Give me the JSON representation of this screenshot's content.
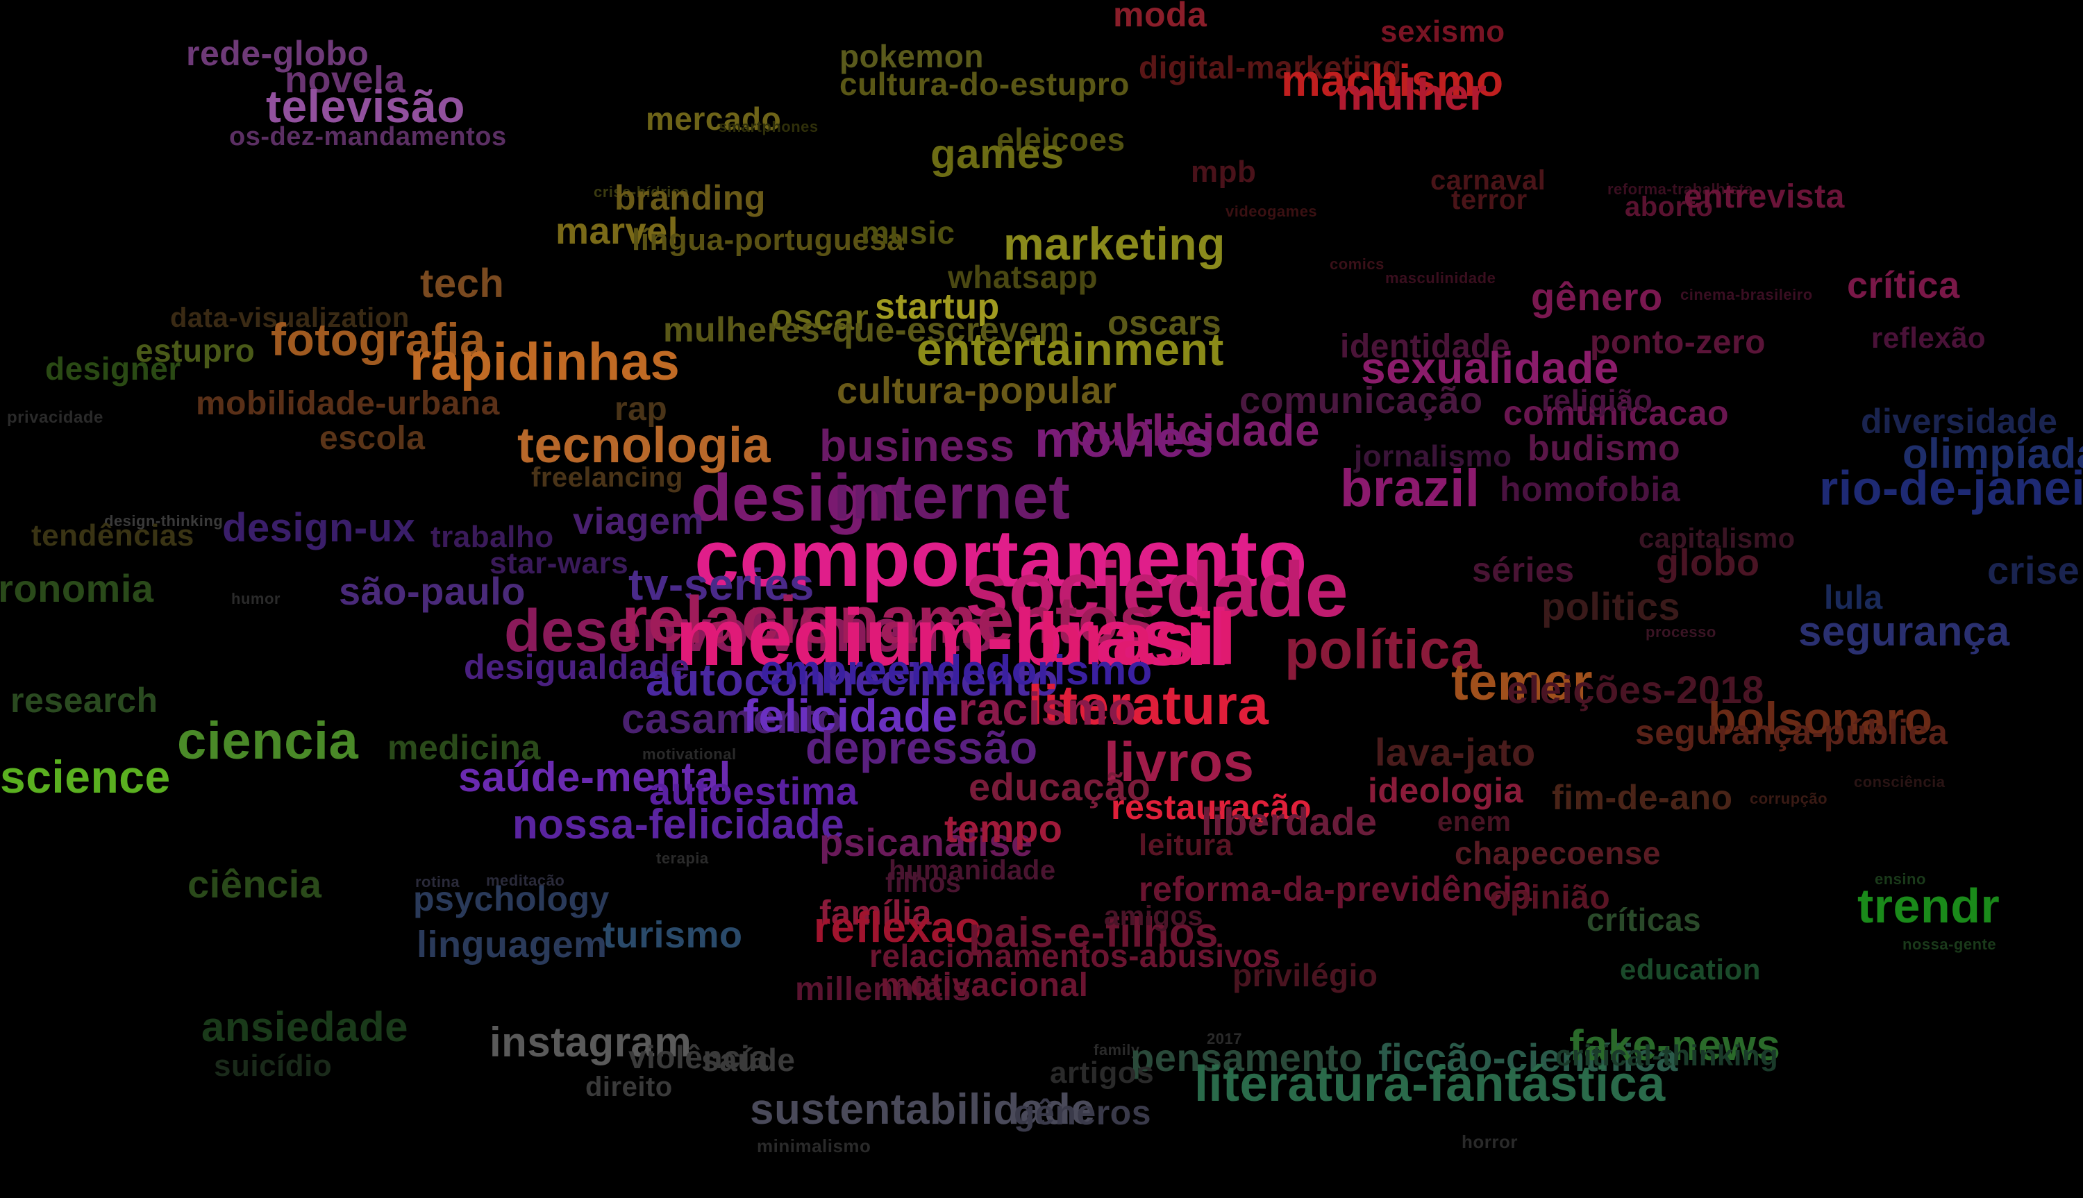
{
  "background_color": "#000000",
  "words": [
    {
      "text": "moda",
      "color": "#8a1e2a"
    },
    {
      "text": "sexismo",
      "color": "#7a1424"
    },
    {
      "text": "rede-globo",
      "color": "#6e3a78"
    },
    {
      "text": "novela",
      "color": "#6a3572"
    },
    {
      "text": "televisão",
      "color": "#92519e"
    },
    {
      "text": "os-dez-mandamentos",
      "color": "#5b2f63"
    },
    {
      "text": "pokemon",
      "color": "#5a5a1c"
    },
    {
      "text": "cultura-do-estupro",
      "color": "#5a5716"
    },
    {
      "text": "digital-marketing",
      "color": "#5a1616"
    },
    {
      "text": "machismo",
      "color": "#c01f1f"
    },
    {
      "text": "mulher",
      "color": "#b01a30"
    },
    {
      "text": "mercado",
      "color": "#6e6418"
    },
    {
      "text": "smartphones",
      "color": "#2f2f0a"
    },
    {
      "text": "eleicoes",
      "color": "#525212"
    },
    {
      "text": "games",
      "color": "#6c6c14"
    },
    {
      "text": "mpb",
      "color": "#4a121a"
    },
    {
      "text": "carnaval",
      "color": "#4a1418"
    },
    {
      "text": "terror",
      "color": "#4a1418"
    },
    {
      "text": "reforma-trabalhista",
      "color": "#3a0e20"
    },
    {
      "text": "aborto",
      "color": "#5a1230"
    },
    {
      "text": "entrevista",
      "color": "#6a1438"
    },
    {
      "text": "crise-hídrica",
      "color": "#3a3a10"
    },
    {
      "text": "branding",
      "color": "#6a5a18"
    },
    {
      "text": "marvel",
      "color": "#7a6a18"
    },
    {
      "text": "língua-portuguesa",
      "color": "#5a5214"
    },
    {
      "text": "music",
      "color": "#505010"
    },
    {
      "text": "videogames",
      "color": "#3a1012"
    },
    {
      "text": "marketing",
      "color": "#8a8a1c"
    },
    {
      "text": "tech",
      "color": "#7a4a20"
    },
    {
      "text": "whatsapp",
      "color": "#4a4812"
    },
    {
      "text": "comics",
      "color": "#3a1018"
    },
    {
      "text": "masculinidade",
      "color": "#3a0e1e"
    },
    {
      "text": "gênero",
      "color": "#7a1850"
    },
    {
      "text": "cinema-brasileiro",
      "color": "#3a0e22"
    },
    {
      "text": "crítica",
      "color": "#7a1848"
    },
    {
      "text": "data-visualization",
      "color": "#3a2a14"
    },
    {
      "text": "fotografia",
      "color": "#a05a20"
    },
    {
      "text": "estupro",
      "color": "#4a5a18"
    },
    {
      "text": "startup",
      "color": "#a09a20"
    },
    {
      "text": "oscar",
      "color": "#6a6a18"
    },
    {
      "text": "mulheres-que-escrevem",
      "color": "#5a5818"
    },
    {
      "text": "oscars",
      "color": "#5a5818"
    },
    {
      "text": "entertainment",
      "color": "#8a8a18"
    },
    {
      "text": "identidade",
      "color": "#4a1438"
    },
    {
      "text": "ponto-zero",
      "color": "#5a1438"
    },
    {
      "text": "reflexão",
      "color": "#4a1238"
    },
    {
      "text": "designer",
      "color": "#2a4a14"
    },
    {
      "text": "rapidinhas",
      "color": "#c06a24"
    },
    {
      "text": "sexualidade",
      "color": "#8a1c6a"
    },
    {
      "text": "privacidade",
      "color": "#2a2a2a"
    },
    {
      "text": "mobilidade-urbana",
      "color": "#5a3018"
    },
    {
      "text": "cultura-popular",
      "color": "#6a5a18"
    },
    {
      "text": "comunicação",
      "color": "#4a1840"
    },
    {
      "text": "comunicacao",
      "color": "#6a1650"
    },
    {
      "text": "religião",
      "color": "#4a1440"
    },
    {
      "text": "diversidade",
      "color": "#1a2450"
    },
    {
      "text": "olimpíadas",
      "color": "#1e2e6a"
    },
    {
      "text": "escola",
      "color": "#5a3418"
    },
    {
      "text": "rap",
      "color": "#4a3418"
    },
    {
      "text": "publicidade",
      "color": "#7a1c6a"
    },
    {
      "text": "budismo",
      "color": "#5a1648"
    },
    {
      "text": "tecnologia",
      "color": "#b8682a"
    },
    {
      "text": "movies",
      "color": "#7a1c78"
    },
    {
      "text": "business",
      "color": "#6a1a66"
    },
    {
      "text": "jornalismo",
      "color": "#3a1438"
    },
    {
      "text": "freelancing",
      "color": "#4a3418"
    },
    {
      "text": "homofobia",
      "color": "#4a1240"
    },
    {
      "text": "rio-de-janeiro",
      "color": "#1e2a74"
    },
    {
      "text": "brazil",
      "color": "#8c1a6e"
    },
    {
      "text": "design",
      "color": "#7a1a70"
    },
    {
      "text": "internet",
      "color": "#6a1a6a"
    },
    {
      "text": "design-thinking",
      "color": "#3a3a3a"
    },
    {
      "text": "tendências",
      "color": "#3a3414"
    },
    {
      "text": "design-ux",
      "color": "#3a1e6a"
    },
    {
      "text": "viagem",
      "color": "#4a2070"
    },
    {
      "text": "trabalho",
      "color": "#3a1a5a"
    },
    {
      "text": "capitalismo",
      "color": "#3a1424"
    },
    {
      "text": "globo",
      "color": "#4a1424"
    },
    {
      "text": "comportamento",
      "color": "#e01e8a"
    },
    {
      "text": "sociedade",
      "color": "#c01c70"
    },
    {
      "text": "star-wars",
      "color": "#3a1a5a"
    },
    {
      "text": "gastronomia",
      "color": "#2a4a1a"
    },
    {
      "text": "humor",
      "color": "#2a2a2a"
    },
    {
      "text": "são-paulo",
      "color": "#4a2a7a"
    },
    {
      "text": "tv-series",
      "color": "#4a2a8a"
    },
    {
      "text": "séries",
      "color": "#4a1434"
    },
    {
      "text": "crise",
      "color": "#1a2450"
    },
    {
      "text": "politics",
      "color": "#3a1a1a"
    },
    {
      "text": "lula",
      "color": "#1a2a5a"
    },
    {
      "text": "desenvolvimento",
      "color": "#8a1a5a"
    },
    {
      "text": "relacionamentos",
      "color": "#a01c5a"
    },
    {
      "text": "medium-brasil",
      "color": "#e01a78"
    },
    {
      "text": "brasil",
      "color": "#e01a70"
    },
    {
      "text": "processo",
      "color": "#3a1424"
    },
    {
      "text": "segurança",
      "color": "#2a3070"
    },
    {
      "text": "política",
      "color": "#8a1a3a"
    },
    {
      "text": "desigualdade",
      "color": "#4a2080"
    },
    {
      "text": "autoconhecimento",
      "color": "#4a28a0"
    },
    {
      "text": "empreendedorismo",
      "color": "#3a20a0"
    },
    {
      "text": "temer",
      "color": "#a0501c"
    },
    {
      "text": "eleições-2018",
      "color": "#4a1424"
    },
    {
      "text": "literatura",
      "color": "#e01e3a"
    },
    {
      "text": "research",
      "color": "#2a4a20"
    },
    {
      "text": "casamento",
      "color": "#4a2070"
    },
    {
      "text": "felicidade",
      "color": "#6a30c0"
    },
    {
      "text": "racismo",
      "color": "#8a1a4a"
    },
    {
      "text": "bolsonaro",
      "color": "#6a2a16"
    },
    {
      "text": "ciencia",
      "color": "#4a8a28"
    },
    {
      "text": "medicina",
      "color": "#2a4a1a"
    },
    {
      "text": "depressão",
      "color": "#5a2080"
    },
    {
      "text": "lava-jato",
      "color": "#4a1c1c"
    },
    {
      "text": "segurança-pública",
      "color": "#5a2218"
    },
    {
      "text": "livros",
      "color": "#a01c4a"
    },
    {
      "text": "science",
      "color": "#5ab020"
    },
    {
      "text": "motivational",
      "color": "#2a2a2a"
    },
    {
      "text": "saúde-mental",
      "color": "#6a2ab0"
    },
    {
      "text": "autoestima",
      "color": "#5a20a0"
    },
    {
      "text": "educação",
      "color": "#7a1c3a"
    },
    {
      "text": "ideologia",
      "color": "#8a1c3a"
    },
    {
      "text": "fim-de-ano",
      "color": "#4a2418"
    },
    {
      "text": "corrupção",
      "color": "#3a1a14"
    },
    {
      "text": "consciência",
      "color": "#2a1414"
    },
    {
      "text": "nossa-felicidade",
      "color": "#5a24a0"
    },
    {
      "text": "restauração",
      "color": "#e0203a"
    },
    {
      "text": "liberdade",
      "color": "#6a1c3a"
    },
    {
      "text": "enem",
      "color": "#4a1424"
    },
    {
      "text": "psicanálise",
      "color": "#6a1a5a"
    },
    {
      "text": "tempo",
      "color": "#a01a3a"
    },
    {
      "text": "leitura",
      "color": "#5a1424"
    },
    {
      "text": "chapecoense",
      "color": "#5a1c24"
    },
    {
      "text": "terapia",
      "color": "#2a2a2a"
    },
    {
      "text": "humanidade",
      "color": "#4a1430"
    },
    {
      "text": "filhos",
      "color": "#4a1430"
    },
    {
      "text": "ciência",
      "color": "#2a4a1a"
    },
    {
      "text": "rotina",
      "color": "#2a2a3a"
    },
    {
      "text": "meditação",
      "color": "#2a2a3a"
    },
    {
      "text": "reforma-da-previdência",
      "color": "#6a1430"
    },
    {
      "text": "opinião",
      "color": "#5a1424"
    },
    {
      "text": "ensino",
      "color": "#1a3a1a"
    },
    {
      "text": "psychology",
      "color": "#2a3a5a"
    },
    {
      "text": "família",
      "color": "#8a1a3a"
    },
    {
      "text": "reflexao",
      "color": "#a0142e"
    },
    {
      "text": "pais-e-filhos",
      "color": "#6a1430"
    },
    {
      "text": "amigos",
      "color": "#4a1428"
    },
    {
      "text": "críticas",
      "color": "#2a4a2a"
    },
    {
      "text": "trendr",
      "color": "#1a8a1a"
    },
    {
      "text": "linguagem",
      "color": "#2a3a5a"
    },
    {
      "text": "turismo",
      "color": "#2a4a6a"
    },
    {
      "text": "nossa-gente",
      "color": "#1a3a1a"
    },
    {
      "text": "relacionamentos-abusivos",
      "color": "#6a1430"
    },
    {
      "text": "privilégio",
      "color": "#4a1420"
    },
    {
      "text": "education",
      "color": "#1a4a2a"
    },
    {
      "text": "millennials",
      "color": "#5a1430"
    },
    {
      "text": "motivacional",
      "color": "#6a1430"
    },
    {
      "text": "ansiedade",
      "color": "#1a3a1a"
    },
    {
      "text": "suicídio",
      "color": "#1a2a1a"
    },
    {
      "text": "instagram",
      "color": "#5a5a5a"
    },
    {
      "text": "violência",
      "color": "#3a3a3a"
    },
    {
      "text": "saúde",
      "color": "#3a3a3a"
    },
    {
      "text": "direito",
      "color": "#3a3a3a"
    },
    {
      "text": "family",
      "color": "#2a2a2a"
    },
    {
      "text": "2017",
      "color": "#2a2a2a"
    },
    {
      "text": "pensamento",
      "color": "#2a4a3a"
    },
    {
      "text": "ficção-científica",
      "color": "#2a5a4a"
    },
    {
      "text": "literatura-fantástica",
      "color": "#2a6a4a"
    },
    {
      "text": "fake-news",
      "color": "#2a6a2a"
    },
    {
      "text": "critical-thinking",
      "color": "#1a3a2a"
    },
    {
      "text": "artigos",
      "color": "#2a2a2a"
    },
    {
      "text": "sustentabilidade",
      "color": "#4a4a5a"
    },
    {
      "text": "gêneros",
      "color": "#3a3a4a"
    },
    {
      "text": "minimalismo",
      "color": "#2a2a2a"
    },
    {
      "text": "horror",
      "color": "#2a2a2a"
    }
  ]
}
